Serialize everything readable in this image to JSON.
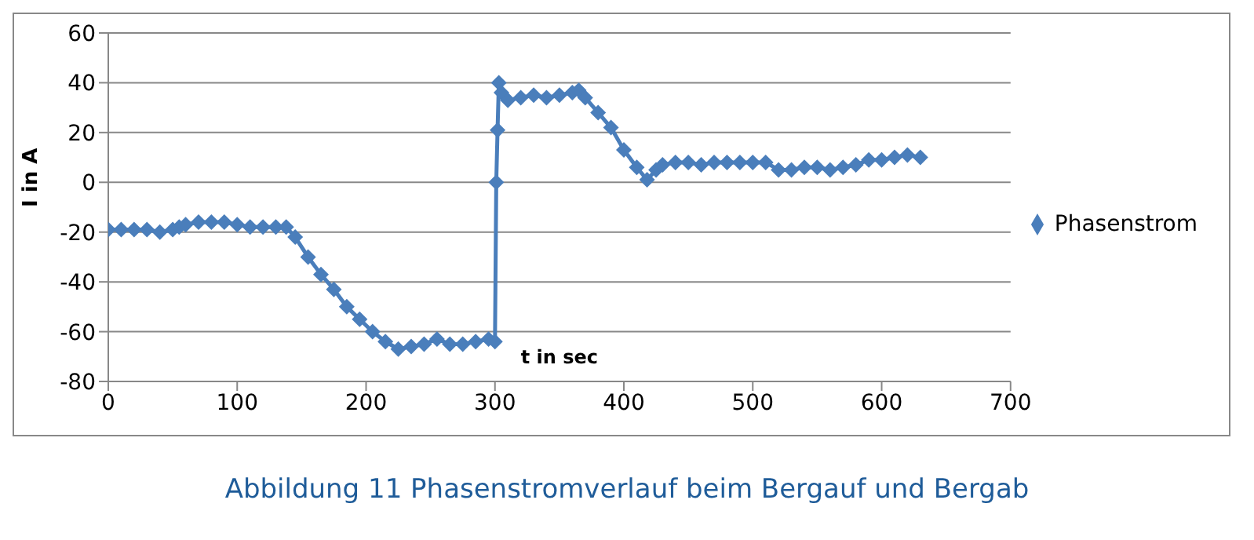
{
  "chart_data": {
    "type": "line",
    "xlabel": "t in sec",
    "ylabel": "I in A",
    "xlim": [
      0,
      700
    ],
    "xticks": [
      0,
      100,
      200,
      300,
      400,
      500,
      600,
      700
    ],
    "ylim": [
      -80,
      60
    ],
    "yticks": [
      -80,
      -60,
      -40,
      -20,
      0,
      20,
      40,
      60
    ],
    "grid": "y",
    "legend": "right",
    "marker": "diamond",
    "annotations": [
      "Abbildung 11 Phasenstromverlauf beim Bergauf und Bergab"
    ],
    "series": [
      {
        "name": "Phasenstrom",
        "color": "#4a7ebb",
        "x": [
          0,
          10,
          20,
          30,
          40,
          50,
          55,
          60,
          70,
          80,
          90,
          100,
          110,
          120,
          130,
          138,
          145,
          155,
          165,
          175,
          185,
          195,
          205,
          215,
          225,
          235,
          245,
          255,
          265,
          275,
          285,
          295,
          300,
          301,
          302,
          303,
          305,
          310,
          320,
          330,
          340,
          350,
          360,
          365,
          370,
          380,
          390,
          400,
          410,
          418,
          425,
          430,
          440,
          450,
          460,
          470,
          480,
          490,
          500,
          510,
          520,
          530,
          540,
          550,
          560,
          570,
          580,
          590,
          600,
          610,
          620,
          630
        ],
        "values": [
          -19,
          -19,
          -19,
          -19,
          -20,
          -19,
          -18,
          -17,
          -16,
          -16,
          -16,
          -17,
          -18,
          -18,
          -18,
          -18,
          -22,
          -30,
          -37,
          -43,
          -50,
          -55,
          -60,
          -64,
          -67,
          -66,
          -65,
          -63,
          -65,
          -65,
          -64,
          -63,
          -64,
          0,
          21,
          40,
          36,
          33,
          34,
          35,
          34,
          35,
          36,
          37,
          34,
          28,
          22,
          13,
          6,
          1,
          5,
          7,
          8,
          8,
          7,
          8,
          8,
          8,
          8,
          8,
          5,
          5,
          6,
          6,
          5,
          6,
          7,
          9,
          9,
          10,
          11,
          10
        ]
      }
    ]
  }
}
